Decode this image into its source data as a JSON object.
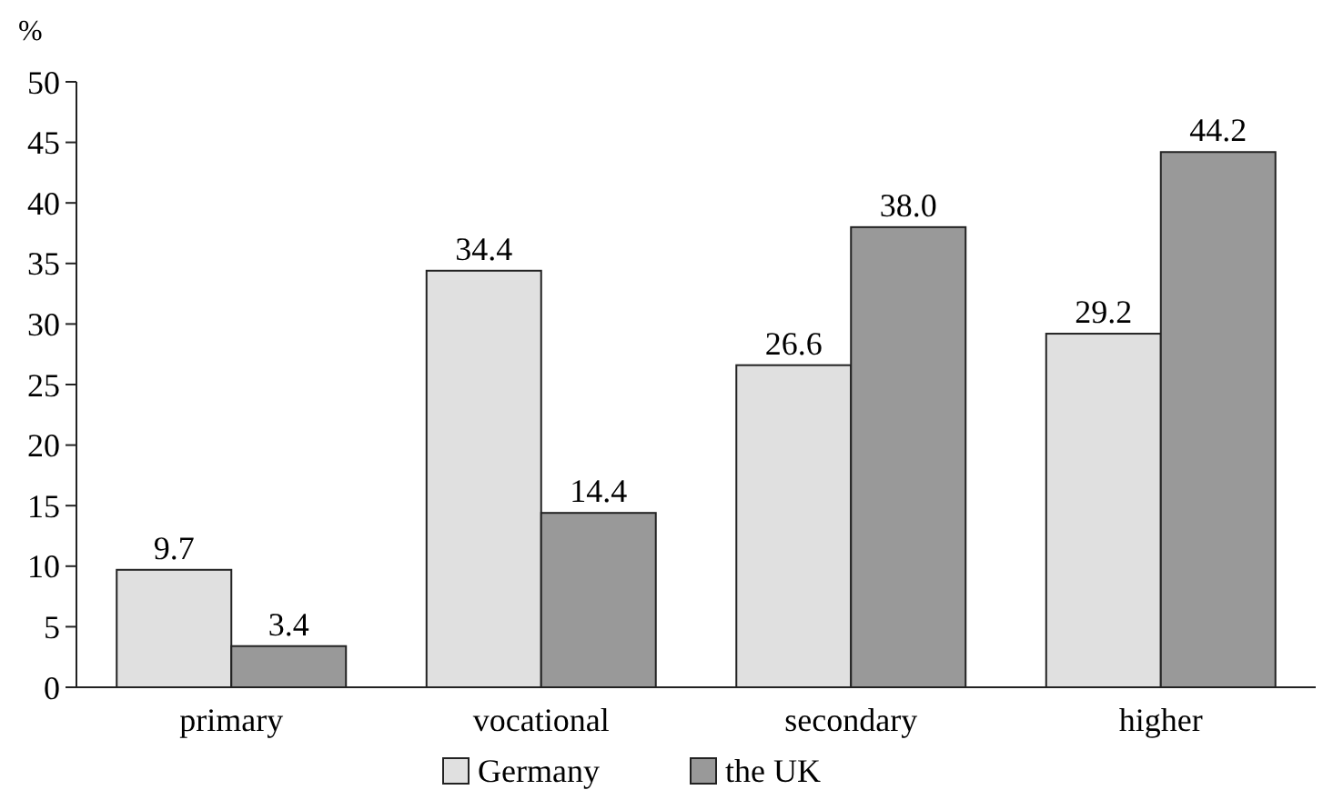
{
  "chart_data": {
    "type": "bar",
    "ylabel": "%",
    "categories": [
      "primary",
      "vocational",
      "secondary",
      "higher"
    ],
    "series": [
      {
        "name": "Germany",
        "color": "#e0e0e0",
        "values": [
          9.7,
          34.4,
          26.6,
          29.2
        ]
      },
      {
        "name": "the UK",
        "color": "#999999",
        "values": [
          3.4,
          14.4,
          38.0,
          44.2
        ]
      }
    ],
    "value_labels": [
      [
        "9.7",
        "34.4",
        "26.6",
        "29.2"
      ],
      [
        "3.4",
        "14.4",
        "38.0",
        "44.2"
      ]
    ],
    "ylim": [
      0,
      50
    ],
    "yticks": [
      0,
      5,
      10,
      15,
      20,
      25,
      30,
      35,
      40,
      45,
      50
    ],
    "grid": false,
    "legend": "bottom"
  }
}
